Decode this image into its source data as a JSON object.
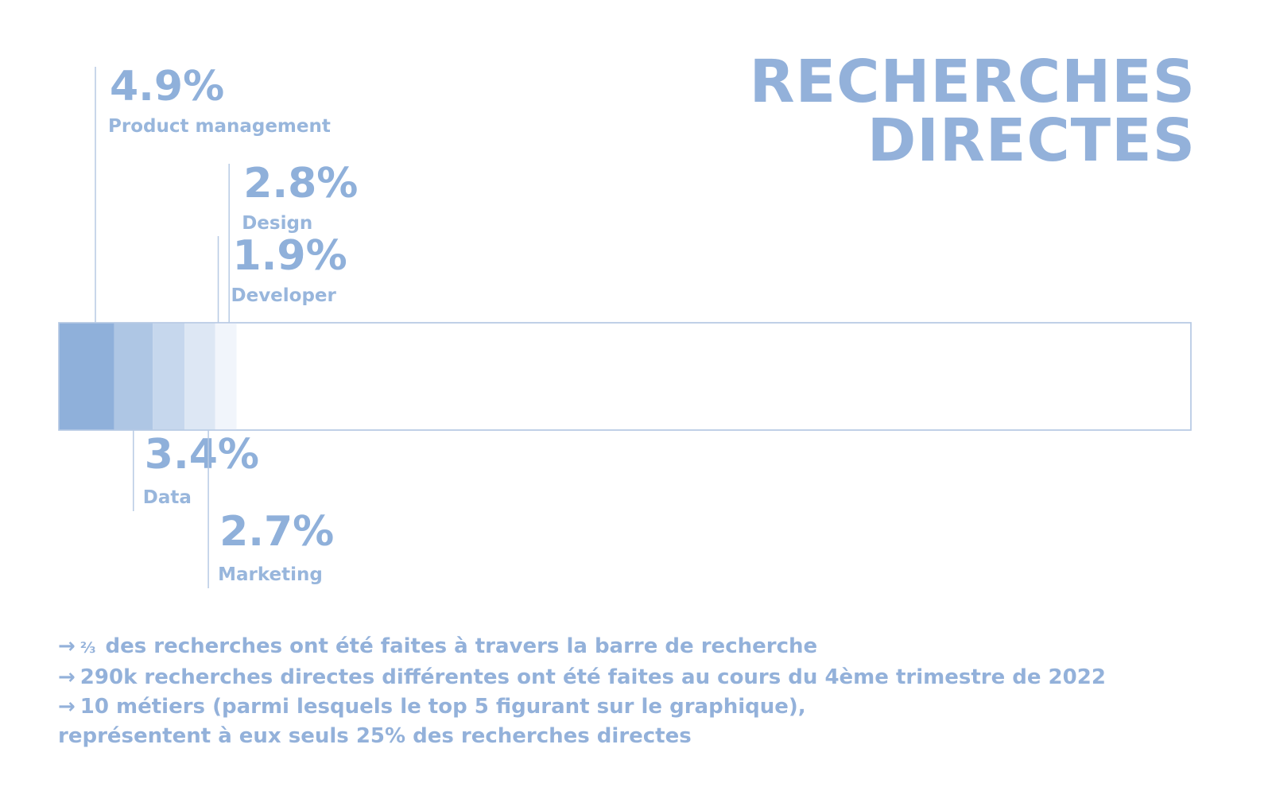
{
  "title": {
    "line1": "RECHERCHES",
    "line2": "DIRECTES"
  },
  "chart_data": {
    "type": "bar",
    "orientation": "horizontal-stacked",
    "categories": [
      "Product management",
      "Data",
      "Design",
      "Marketing",
      "Developer"
    ],
    "values": [
      4.9,
      3.4,
      2.8,
      2.7,
      1.9
    ],
    "value_labels": [
      "4.9%",
      "3.4%",
      "2.8%",
      "2.7%",
      "1.9%"
    ],
    "colors": [
      "#8fb0da",
      "#aec6e4",
      "#c6d7ed",
      "#dde7f4",
      "#f1f5fb"
    ],
    "label_side": [
      "top",
      "bottom",
      "top",
      "bottom",
      "top"
    ],
    "total": 100,
    "unit": "%"
  },
  "notes": {
    "arrow": "→",
    "line1_fraction": "⅔",
    "line1_text": "des recherches ont été faites à travers la barre de recherche",
    "line2_text": "290k recherches directes différentes ont été faites au cours du 4ème trimestre de 2022",
    "line3_text": "10 métiers (parmi lesquels le top 5 figurant sur le graphique),",
    "line4_text": "représentent à eux seuls 25% des recherches directes"
  }
}
